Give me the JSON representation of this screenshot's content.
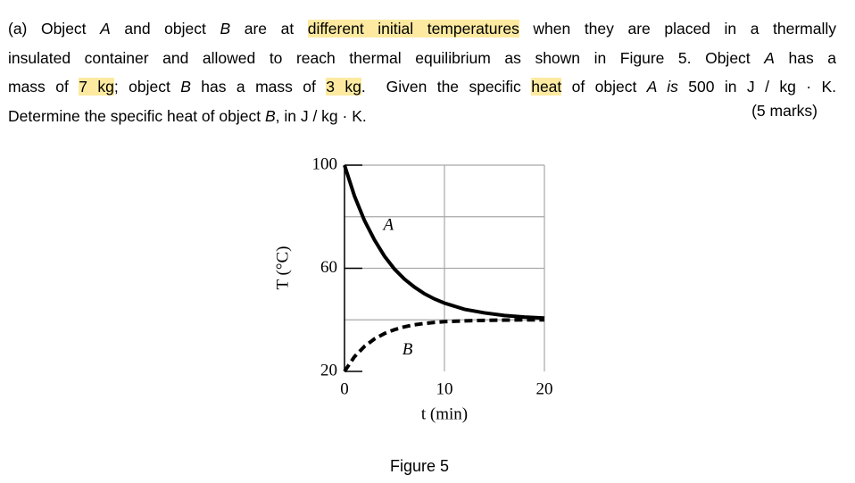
{
  "question": {
    "lines": [
      [
        {
          "text": "(a) Object "
        },
        {
          "text": "A",
          "italic": true
        },
        {
          "text": " and object "
        },
        {
          "text": "B",
          "italic": true
        },
        {
          "text": " are at "
        },
        {
          "text": "different initial temperatures",
          "highlight": true
        },
        {
          "text": " when they are placed in a thermally"
        }
      ],
      [
        {
          "text": "insulated container and allowed to reach thermal equilibrium as shown in Figure 5. Object "
        },
        {
          "text": "A",
          "italic": true
        },
        {
          "text": " has a"
        }
      ],
      [
        {
          "text": "mass of "
        },
        {
          "text": "7 kg",
          "highlight": true
        },
        {
          "text": "; object "
        },
        {
          "text": "B",
          "italic": true
        },
        {
          "text": " has a mass of "
        },
        {
          "text": "3 kg",
          "highlight": true
        },
        {
          "text": ".  Given the specific "
        },
        {
          "text": "heat",
          "highlight": true
        },
        {
          "text": " of object "
        },
        {
          "text": "A is",
          "italic": true
        },
        {
          "text": " 500 in J / kg · K."
        }
      ],
      [
        {
          "text": "Determine the specific heat of object "
        },
        {
          "text": "B",
          "italic": true
        },
        {
          "text": ", in J / kg · K."
        }
      ]
    ],
    "marks": "(5 marks)"
  },
  "chart_data": {
    "type": "line",
    "x_label": "t (min)",
    "y_label": "T (°C)",
    "x": [
      0,
      1,
      2,
      3,
      4,
      5,
      6,
      7,
      8,
      9,
      10,
      12,
      14,
      16,
      18,
      20
    ],
    "series": [
      {
        "name": "A",
        "color": "#000000",
        "dashed": false,
        "values": [
          100,
          88,
          78.5,
          71,
          64.7,
          59.7,
          55.8,
          52.7,
          50.1,
          48.1,
          46.5,
          44.1,
          42.7,
          41.7,
          41.1,
          40.7
        ]
      },
      {
        "name": "B",
        "color": "#000000",
        "dashed": true,
        "values": [
          20,
          25.7,
          29.7,
          32.6,
          34.7,
          36.2,
          37.3,
          38.1,
          38.6,
          39,
          39.3,
          39.6,
          39.8,
          39.9,
          40,
          40
        ]
      }
    ],
    "xlim": [
      0,
      20
    ],
    "ylim": [
      20,
      100
    ],
    "xticks": [
      0,
      10,
      20
    ],
    "yticks": [
      20,
      60,
      100
    ],
    "ygrid": [
      40,
      60,
      80,
      100
    ],
    "grid": true
  },
  "figure_caption": "Figure 5"
}
